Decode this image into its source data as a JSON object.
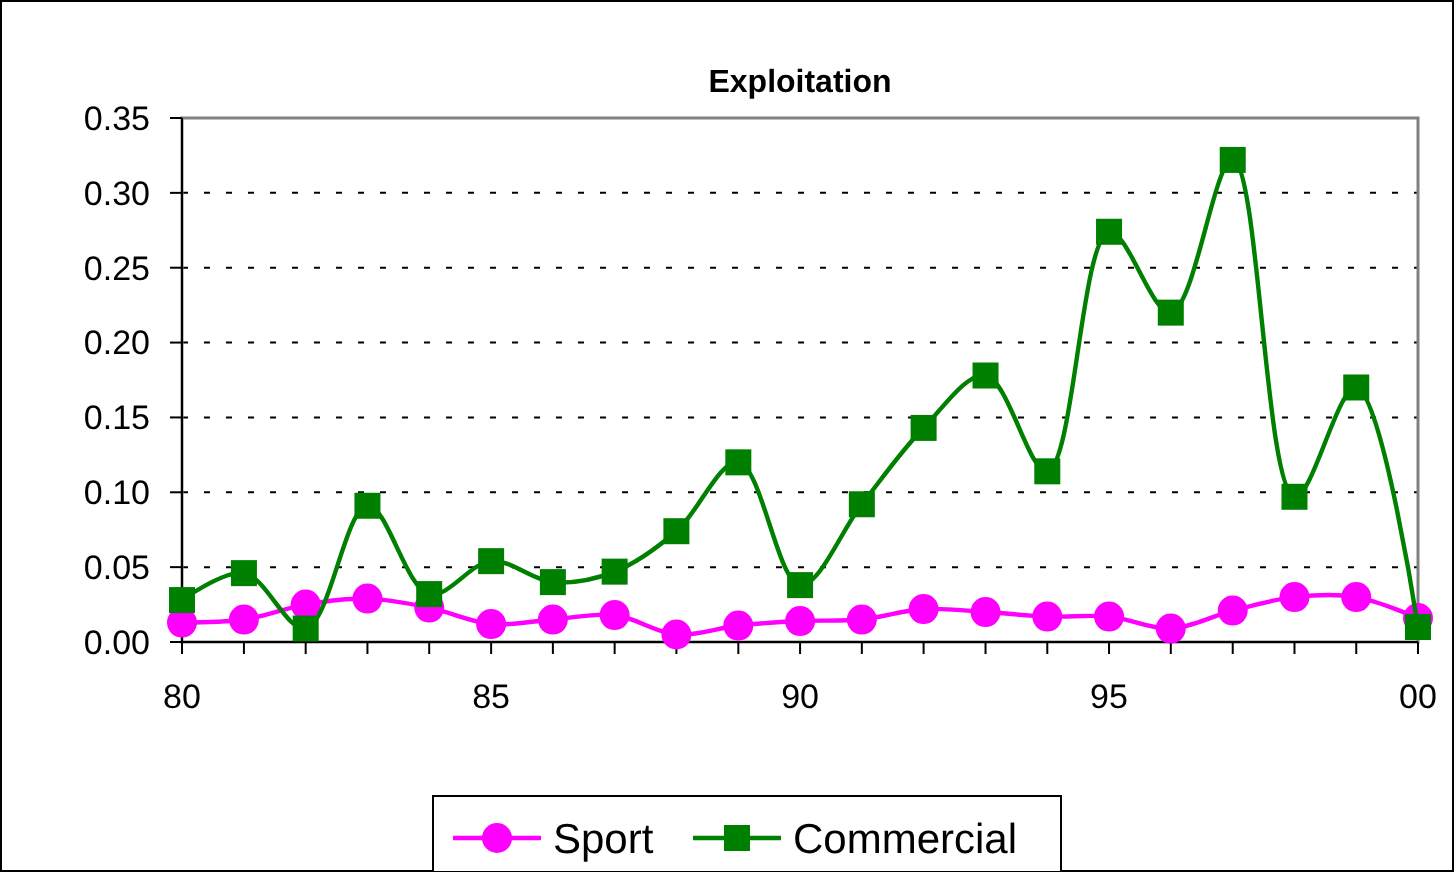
{
  "chart_data": {
    "type": "line",
    "title": "Exploitation",
    "x": [
      "1980",
      "1981",
      "1982",
      "1983",
      "1984",
      "1985",
      "1986",
      "1987",
      "1988",
      "1989",
      "1990",
      "1991",
      "1992",
      "1993",
      "1994",
      "1995",
      "1996",
      "1997",
      "1998",
      "1999",
      "2000"
    ],
    "xlim": [
      "1980",
      "2000"
    ],
    "xticks": [
      {
        "value": "1980",
        "label": "80"
      },
      {
        "value": "1981",
        "label": null
      },
      {
        "value": "1982",
        "label": null
      },
      {
        "value": "1983",
        "label": null
      },
      {
        "value": "1984",
        "label": null
      },
      {
        "value": "1985",
        "label": "85"
      },
      {
        "value": "1986",
        "label": null
      },
      {
        "value": "1987",
        "label": null
      },
      {
        "value": "1988",
        "label": null
      },
      {
        "value": "1989",
        "label": null
      },
      {
        "value": "1990",
        "label": "90"
      },
      {
        "value": "1991",
        "label": null
      },
      {
        "value": "1992",
        "label": null
      },
      {
        "value": "1993",
        "label": null
      },
      {
        "value": "1994",
        "label": null
      },
      {
        "value": "1995",
        "label": "95"
      },
      {
        "value": "1996",
        "label": null
      },
      {
        "value": "1997",
        "label": null
      },
      {
        "value": "1998",
        "label": null
      },
      {
        "value": "1999",
        "label": null
      },
      {
        "value": "2000",
        "label": "00"
      }
    ],
    "ylim": [
      0,
      0.35
    ],
    "yticks": [
      {
        "value": 0,
        "label": "0.00"
      },
      {
        "value": 0.05,
        "label": "0.05"
      },
      {
        "value": 0.1,
        "label": "0.10"
      },
      {
        "value": 0.15,
        "label": "0.15"
      },
      {
        "value": 0.2,
        "label": "0.20"
      },
      {
        "value": 0.25,
        "label": "0.25"
      },
      {
        "value": 0.3,
        "label": "0.30"
      },
      {
        "value": 0.35,
        "label": "0.35"
      }
    ],
    "grid": "y",
    "legend": "bottom",
    "line_style": "solid",
    "series": [
      {
        "name": "Sport",
        "color": "#ff00ff",
        "marker": "circle",
        "values": [
          0.013,
          0.015,
          0.025,
          0.029,
          0.023,
          0.012,
          0.015,
          0.018,
          0.005,
          0.011,
          0.014,
          0.015,
          0.022,
          0.02,
          0.017,
          0.017,
          0.009,
          0.021,
          0.03,
          0.03,
          0.016
        ]
      },
      {
        "name": "Commercial",
        "color": "#008000",
        "marker": "square",
        "values": [
          0.028,
          0.046,
          0.009,
          0.091,
          0.032,
          0.054,
          0.04,
          0.047,
          0.074,
          0.12,
          0.038,
          0.092,
          0.143,
          0.178,
          0.114,
          0.274,
          0.22,
          0.322,
          0.097,
          0.17,
          0.01
        ]
      }
    ]
  }
}
